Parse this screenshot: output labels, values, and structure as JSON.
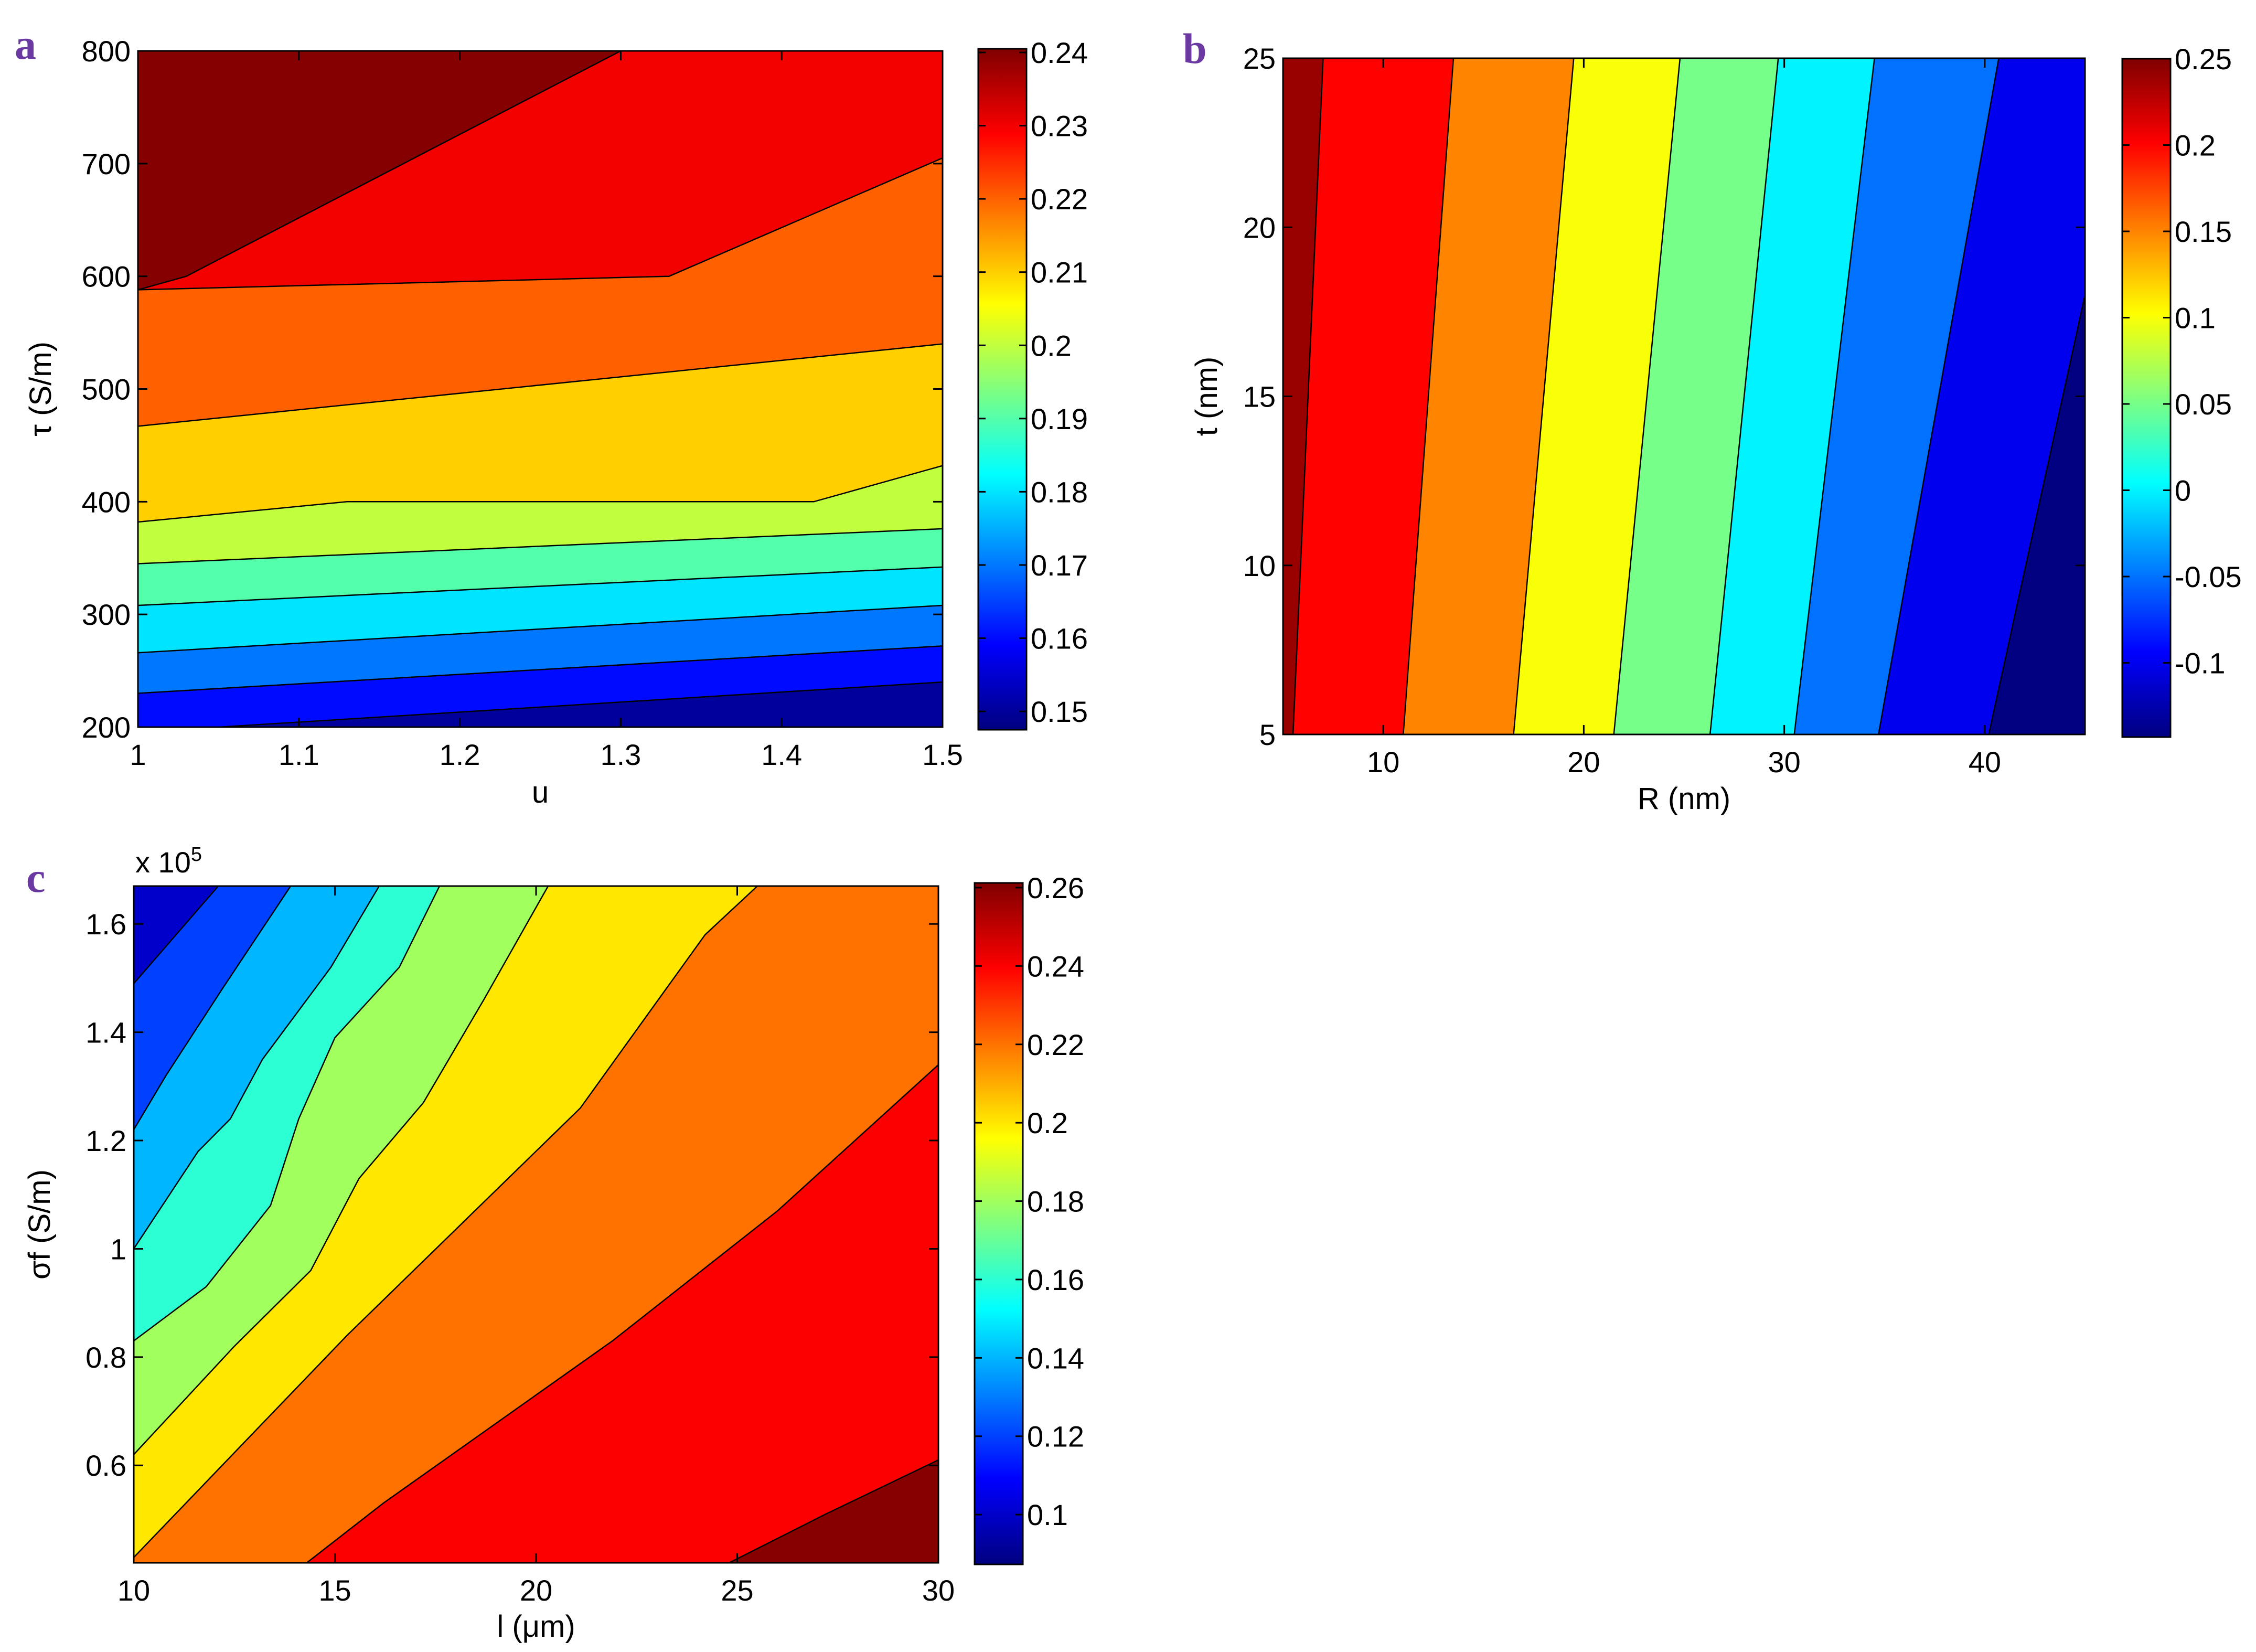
{
  "chart_data": [
    {
      "panel": "a",
      "type": "contour",
      "xlabel": "u",
      "ylabel": "τ (S/m)",
      "xlim": [
        1,
        1.5
      ],
      "ylim": [
        200,
        800
      ],
      "xticks": [
        1,
        1.1,
        1.2,
        1.3,
        1.4,
        1.5
      ],
      "xtick_labels": [
        "1",
        "1.1",
        "1.2",
        "1.3",
        "1.4",
        "1.5"
      ],
      "yticks": [
        200,
        300,
        400,
        500,
        600,
        700,
        800
      ],
      "ytick_labels": [
        "200",
        "300",
        "400",
        "500",
        "600",
        "700",
        "800"
      ],
      "colorbar": {
        "range": [
          0.1475,
          0.2405
        ],
        "ticks": [
          0.15,
          0.16,
          0.17,
          0.18,
          0.19,
          0.2,
          0.21,
          0.22,
          0.23,
          0.24
        ],
        "tick_labels": [
          "0.15",
          "0.16",
          "0.17",
          "0.18",
          "0.19",
          "0.2",
          "0.21",
          "0.22",
          "0.23",
          "0.24"
        ]
      },
      "contour_levels": [
        0.155,
        0.165,
        0.175,
        0.185,
        0.195,
        0.205,
        0.215,
        0.225,
        0.235
      ],
      "contour_lines": [
        [
          [
            1.05,
            200
          ],
          [
            1.5,
            240
          ]
        ],
        [
          [
            1,
            230
          ],
          [
            1.5,
            272
          ]
        ],
        [
          [
            1,
            266
          ],
          [
            1.5,
            308
          ]
        ],
        [
          [
            1,
            308
          ],
          [
            1.5,
            342
          ]
        ],
        [
          [
            1,
            345
          ],
          [
            1.5,
            376
          ]
        ],
        [
          [
            1,
            382
          ],
          [
            1.13,
            400
          ],
          [
            1.42,
            400
          ],
          [
            1.5,
            432
          ]
        ],
        [
          [
            1,
            467
          ],
          [
            1.5,
            540
          ]
        ],
        [
          [
            1,
            588
          ],
          [
            1.33,
            600
          ],
          [
            1.5,
            705
          ]
        ],
        [
          [
            1,
            588
          ],
          [
            1.03,
            600
          ],
          [
            1.3,
            800
          ]
        ]
      ]
    },
    {
      "panel": "b",
      "type": "contour",
      "xlabel": "R (nm)",
      "ylabel": "t (nm)",
      "xlim": [
        5,
        45
      ],
      "ylim": [
        5,
        25
      ],
      "xticks": [
        10,
        20,
        30,
        40
      ],
      "xtick_labels": [
        "10",
        "20",
        "30",
        "40"
      ],
      "yticks": [
        5,
        10,
        15,
        20,
        25
      ],
      "ytick_labels": [
        "5",
        "10",
        "15",
        "20",
        "25"
      ],
      "colorbar": {
        "range": [
          -0.143,
          0.25
        ],
        "ticks": [
          -0.1,
          -0.05,
          0,
          0.05,
          0.1,
          0.15,
          0.2,
          0.25
        ],
        "tick_labels": [
          "-0.1",
          "-0.05",
          "0",
          "0.05",
          "0.1",
          "0.15",
          "0.2",
          "0.25"
        ]
      },
      "contour_levels": [
        0.225,
        0.175,
        0.125,
        0.075,
        0.025,
        -0.025,
        -0.075,
        -0.125
      ],
      "contour_lines": [
        [
          [
            5.5,
            5
          ],
          [
            7,
            25
          ]
        ],
        [
          [
            11,
            5
          ],
          [
            13.5,
            25
          ]
        ],
        [
          [
            16.5,
            5
          ],
          [
            19.5,
            25
          ]
        ],
        [
          [
            21.5,
            5
          ],
          [
            24.8,
            25
          ]
        ],
        [
          [
            26.3,
            5
          ],
          [
            29.7,
            25
          ]
        ],
        [
          [
            30.5,
            5
          ],
          [
            34.5,
            25
          ]
        ],
        [
          [
            34.7,
            5
          ],
          [
            40.7,
            25
          ]
        ],
        [
          [
            40.2,
            5
          ],
          [
            45,
            18
          ]
        ]
      ]
    },
    {
      "panel": "c",
      "type": "contour",
      "xlabel": "l (μm)",
      "ylabel": "σf (S/m)",
      "y_multiplier": "x 10",
      "y_multiplier_exponent": "5",
      "xlim": [
        10,
        30
      ],
      "ylim": [
        0.42,
        1.67
      ],
      "xticks": [
        10,
        15,
        20,
        25,
        30
      ],
      "xtick_labels": [
        "10",
        "15",
        "20",
        "25",
        "30"
      ],
      "yticks": [
        0.6,
        0.8,
        1,
        1.2,
        1.4,
        1.6
      ],
      "ytick_labels": [
        "0.6",
        "0.8",
        "1",
        "1.2",
        "1.4",
        "1.6"
      ],
      "colorbar": {
        "range": [
          0.0873,
          0.2612
        ],
        "ticks": [
          0.1,
          0.12,
          0.14,
          0.16,
          0.18,
          0.2,
          0.22,
          0.24,
          0.26
        ],
        "tick_labels": [
          "0.1",
          "0.12",
          "0.14",
          "0.16",
          "0.18",
          "0.2",
          "0.22",
          "0.24",
          "0.26"
        ]
      },
      "contour_levels": [
        0.11,
        0.13,
        0.15,
        0.17,
        0.19,
        0.21,
        0.23,
        0.25
      ],
      "contour_lines": [
        [
          [
            10,
            1.49
          ],
          [
            12.1,
            1.67
          ]
        ],
        [
          [
            10,
            1.22
          ],
          [
            10.8,
            1.32
          ],
          [
            12.2,
            1.48
          ],
          [
            13.9,
            1.67
          ]
        ],
        [
          [
            10,
            1.0
          ],
          [
            11.6,
            1.18
          ],
          [
            12.4,
            1.24
          ],
          [
            13.2,
            1.35
          ],
          [
            14.9,
            1.52
          ],
          [
            16.1,
            1.67
          ]
        ],
        [
          [
            10,
            0.83
          ],
          [
            11.8,
            0.93
          ],
          [
            13.4,
            1.08
          ],
          [
            14.1,
            1.24
          ],
          [
            15,
            1.39
          ],
          [
            16.6,
            1.52
          ],
          [
            17.6,
            1.67
          ]
        ],
        [
          [
            10,
            0.62
          ],
          [
            12.5,
            0.82
          ],
          [
            14.4,
            0.96
          ],
          [
            15.6,
            1.13
          ],
          [
            17.2,
            1.27
          ],
          [
            18.7,
            1.46
          ],
          [
            20.3,
            1.67
          ]
        ],
        [
          [
            10,
            0.43
          ],
          [
            15.3,
            0.84
          ],
          [
            21.1,
            1.26
          ],
          [
            24.2,
            1.58
          ],
          [
            25.5,
            1.67
          ]
        ],
        [
          [
            14.3,
            0.42
          ],
          [
            16.2,
            0.53
          ],
          [
            21.9,
            0.83
          ],
          [
            26,
            1.07
          ],
          [
            30,
            1.34
          ]
        ],
        [
          [
            24.8,
            0.42
          ],
          [
            27.2,
            0.51
          ],
          [
            30,
            0.61
          ]
        ]
      ]
    }
  ]
}
